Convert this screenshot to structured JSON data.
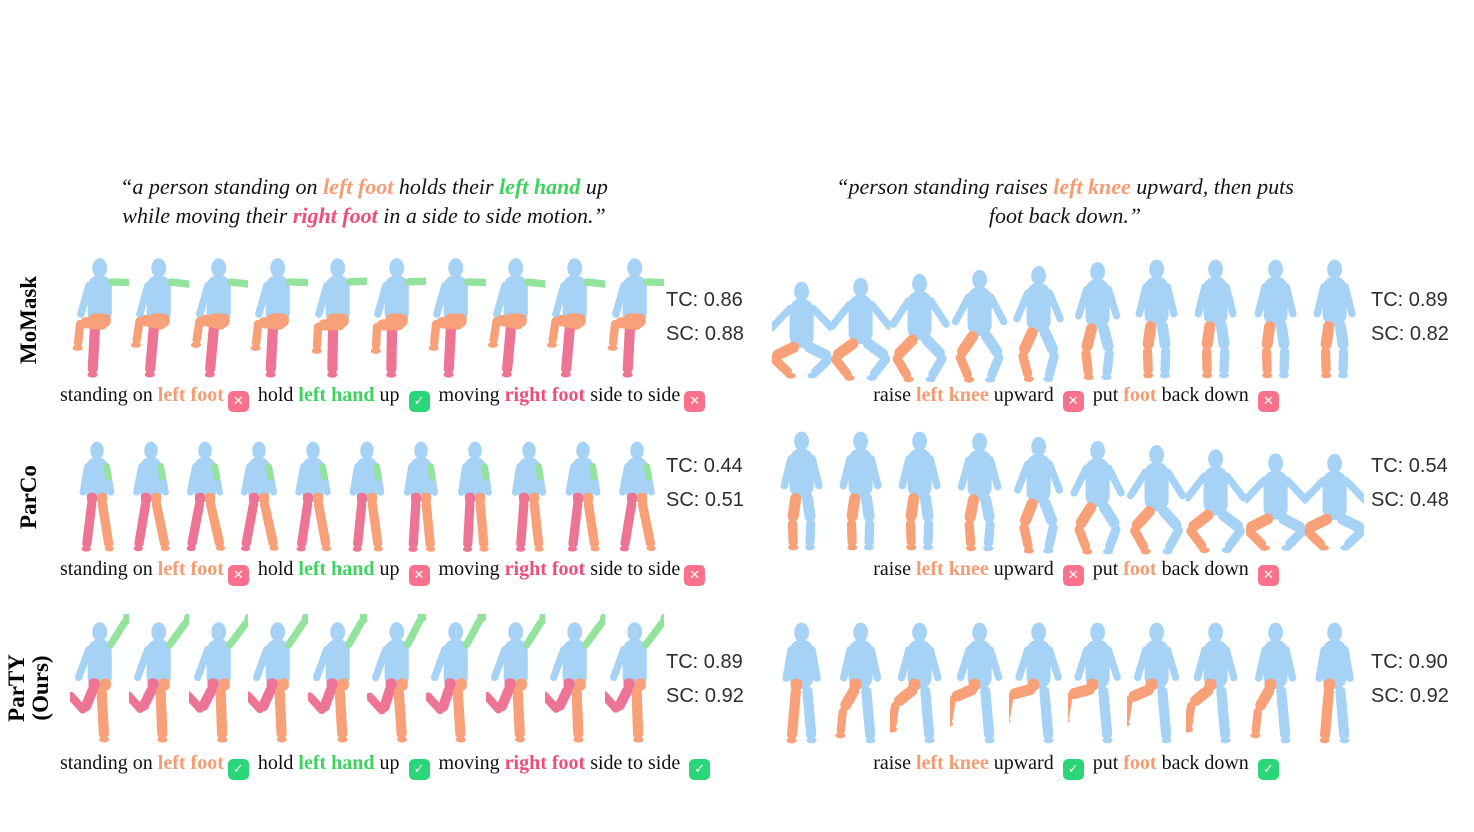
{
  "palette": {
    "body": "#a6d2f5",
    "green": "#93e39c",
    "orange": "#f8a078",
    "pink": "#ee7495",
    "text_orange": "#f89b73",
    "text_green": "#3ed35f",
    "text_pink": "#ef4e7b",
    "icon_cross_bg": "#f9718b",
    "icon_check_bg": "#2bd678",
    "score_text": "#2e2e2e"
  },
  "icons": {
    "cross_glyph": "✕",
    "check_glyph": "✓"
  },
  "quotes": {
    "left": {
      "lines": [
        [
          {
            "t": "“a person standing on "
          },
          {
            "t": "left foot",
            "c": "orange"
          },
          {
            "t": " holds their "
          },
          {
            "t": "left hand",
            "c": "green"
          },
          {
            "t": " up"
          }
        ],
        [
          {
            "t": "while moving their "
          },
          {
            "t": "right foot",
            "c": "pink"
          },
          {
            "t": " in a side to side motion.”"
          }
        ]
      ]
    },
    "right": {
      "lines": [
        [
          {
            "t": "“person standing raises "
          },
          {
            "t": "left knee",
            "c": "orange"
          },
          {
            "t": " upward, then puts"
          }
        ],
        [
          {
            "t": "foot back down.”"
          }
        ]
      ]
    }
  },
  "rows": [
    {
      "label_lines": [
        "MoMask"
      ],
      "panels": [
        {
          "scores": [
            {
              "k": "TC:",
              "v": "0.86"
            },
            {
              "k": "SC:",
              "v": "0.88"
            }
          ],
          "caption": [
            {
              "t": "standing on "
            },
            {
              "t": "left foot",
              "c": "orange"
            },
            {
              "icon": "cross"
            },
            {
              "t": " hold "
            },
            {
              "t": "left hand",
              "c": "green"
            },
            {
              "t": " up "
            },
            {
              "icon": "check"
            },
            {
              "t": " moving "
            },
            {
              "t": "right foot",
              "c": "pink"
            },
            {
              "t": " side to side"
            },
            {
              "icon": "cross"
            }
          ],
          "figures": {
            "pose": "kneeUpArmOut",
            "count": 10
          }
        },
        {
          "scores": [
            {
              "k": "TC:",
              "v": "0.89"
            },
            {
              "k": "SC:",
              "v": "0.82"
            }
          ],
          "caption": [
            {
              "t": "raise "
            },
            {
              "t": "left knee",
              "c": "orange"
            },
            {
              "t": " upward "
            },
            {
              "icon": "cross"
            },
            {
              "t": "  put "
            },
            {
              "t": "foot",
              "c": "orange"
            },
            {
              "t": " back down "
            },
            {
              "icon": "cross"
            }
          ],
          "figures": {
            "pose": "crouchRise",
            "count": 10
          }
        }
      ]
    },
    {
      "label_lines": [
        "ParCo"
      ],
      "panels": [
        {
          "scores": [
            {
              "k": "TC:",
              "v": "0.44"
            },
            {
              "k": "SC:",
              "v": "0.51"
            }
          ],
          "caption": [
            {
              "t": "standing on "
            },
            {
              "t": "left foot",
              "c": "orange"
            },
            {
              "icon": "cross"
            },
            {
              "t": " hold "
            },
            {
              "t": "left hand",
              "c": "green"
            },
            {
              "t": " up "
            },
            {
              "icon": "cross"
            },
            {
              "t": " moving "
            },
            {
              "t": "right foot",
              "c": "pink"
            },
            {
              "t": " side to side"
            },
            {
              "icon": "cross"
            }
          ],
          "figures": {
            "pose": "standTwoTone",
            "count": 11
          }
        },
        {
          "scores": [
            {
              "k": "TC:",
              "v": "0.54"
            },
            {
              "k": "SC:",
              "v": "0.48"
            }
          ],
          "caption": [
            {
              "t": "raise "
            },
            {
              "t": "left knee",
              "c": "orange"
            },
            {
              "t": " upward "
            },
            {
              "icon": "cross"
            },
            {
              "t": "  put "
            },
            {
              "t": "foot",
              "c": "orange"
            },
            {
              "t": " back down "
            },
            {
              "icon": "cross"
            }
          ],
          "figures": {
            "pose": "riseToCrouch",
            "count": 10
          }
        }
      ]
    },
    {
      "label_lines": [
        "ParTY",
        "(Ours)"
      ],
      "panels": [
        {
          "scores": [
            {
              "k": "TC:",
              "v": "0.89"
            },
            {
              "k": "SC:",
              "v": "0.92"
            }
          ],
          "caption": [
            {
              "t": "standing on "
            },
            {
              "t": "left foot",
              "c": "orange"
            },
            {
              "icon": "check"
            },
            {
              "t": " hold "
            },
            {
              "t": "left hand",
              "c": "green"
            },
            {
              "t": " up "
            },
            {
              "icon": "check"
            },
            {
              "t": " moving "
            },
            {
              "t": "right foot",
              "c": "pink"
            },
            {
              "t": " side to side "
            },
            {
              "icon": "check"
            }
          ],
          "figures": {
            "pose": "armUpLegBack",
            "count": 10
          }
        },
        {
          "scores": [
            {
              "k": "TC:",
              "v": "0.90"
            },
            {
              "k": "SC:",
              "v": "0.92"
            }
          ],
          "caption": [
            {
              "t": "raise "
            },
            {
              "t": "left knee",
              "c": "orange"
            },
            {
              "t": " upward "
            },
            {
              "icon": "check"
            },
            {
              "t": "  put "
            },
            {
              "t": "foot",
              "c": "orange"
            },
            {
              "t": " back down "
            },
            {
              "icon": "check"
            }
          ],
          "figures": {
            "pose": "kneeRaiseCycle",
            "count": 10
          }
        }
      ]
    }
  ]
}
